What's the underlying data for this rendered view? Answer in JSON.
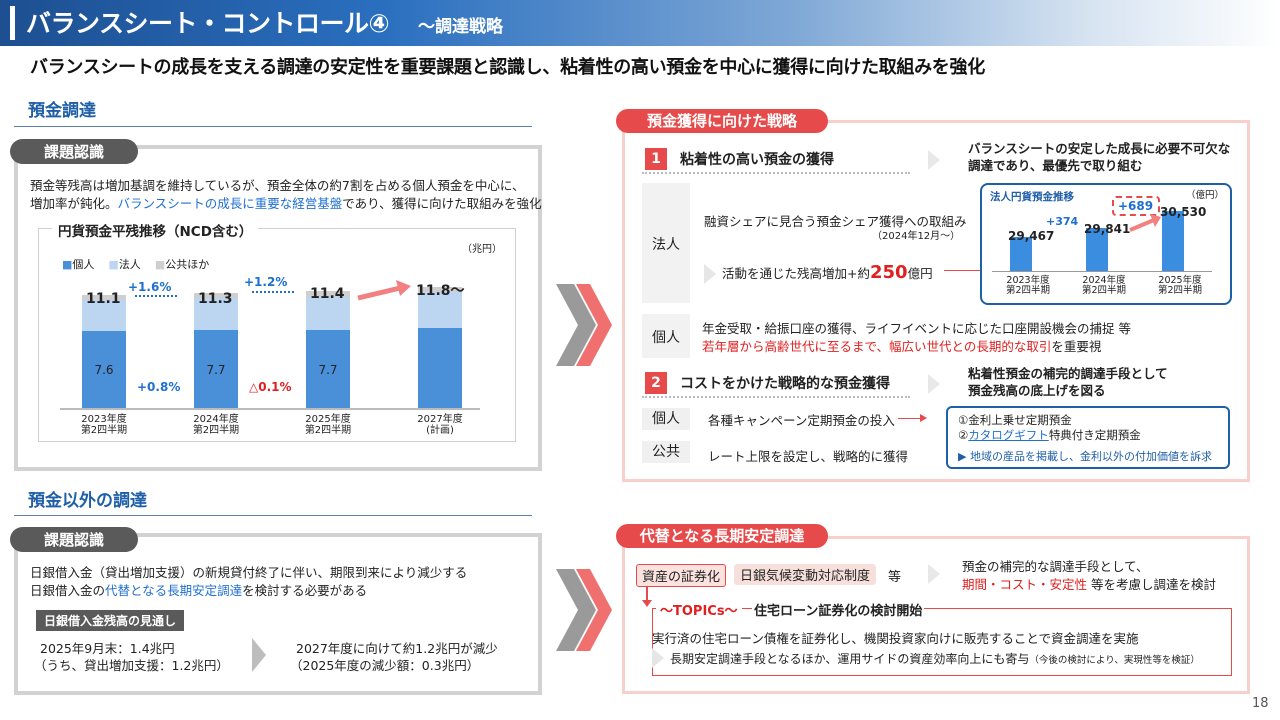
{
  "header": {
    "title": "バランスシート・コントロール④",
    "subtitle": "～調達戦略"
  },
  "lead": "バランスシートの成長を支える調達の安定性を重要課題と認識し、粘着性の高い預金を中心に獲得に向けた取組みを強化",
  "deposit": {
    "heading": "預金調達",
    "issue_tag": "課題認識",
    "text1": "預金等残高は増加基調を維持しているが、預金全体の約7割を占める個人預金を中心に、",
    "text2a": "増加率が鈍化。",
    "text2b": "バランスシートの成長に重要な経営基盤",
    "text2c": "であり、獲得に向けた取組みを強化"
  },
  "chart_data": {
    "type": "bar",
    "title": "円貨預金平残推移（NCD含む）",
    "unit": "（兆円）",
    "legend": [
      "個人",
      "法人",
      "公共ほか"
    ],
    "categories": [
      "2023年度\n第2四半期",
      "2024年度\n第2四半期",
      "2025年度\n第2四半期",
      "2027年度\n(計画)"
    ],
    "totals": [
      "11.1",
      "11.3",
      "11.4",
      "11.8～"
    ],
    "kojin_labels": [
      "7.6",
      "7.7",
      "7.7",
      ""
    ],
    "series": [
      {
        "name": "個人",
        "values": [
          7.6,
          7.7,
          7.7,
          7.9
        ]
      },
      {
        "name": "法人",
        "values": [
          3.0,
          3.1,
          3.2,
          3.4
        ]
      },
      {
        "name": "公共ほか",
        "values": [
          0.5,
          0.5,
          0.5,
          0.5
        ]
      }
    ],
    "growth_total": [
      "+1.6%",
      "+1.2%"
    ],
    "growth_kojin": [
      "+0.8%",
      "△0.1%"
    ],
    "colors": {
      "kojin": "#4a90d9",
      "hojin": "#bcd6f2",
      "kokyo": "#cfcfcf"
    }
  },
  "strategy": {
    "tag": "預金獲得に向けた戦略",
    "item1_num": "1",
    "item1_title": "粘着性の高い預金の獲得",
    "item1_note1": "バランスシートの安定した成長に必要不可欠な",
    "item1_note2": "調達であり、最優先で取り組む",
    "hojin_label": "法人",
    "hojin_text1": "融資シェアに見合う預金シェア獲得への取組み",
    "hojin_text2": "（2024年12月～）",
    "hojin_text3a": "活動を通じた残高増加+約",
    "hojin_text3b": "250",
    "hojin_text3c": "億円",
    "mini_chart": {
      "title": "法人円貨預金推移",
      "unit": "（億円）",
      "categories": [
        "2023年度\n第2四半期",
        "2024年度\n第2四半期",
        "2025年度\n第2四半期"
      ],
      "labels": [
        "29,467",
        "29,841",
        "30,530"
      ],
      "values": [
        29467,
        29841,
        30530
      ],
      "delta1": "+374",
      "delta2": "+689"
    },
    "kojin_label": "個人",
    "kojin_text1": "年金受取・給振口座の獲得、ライフイベントに応じた口座開設機会の捕捉 等",
    "kojin_text2a": "若年層から高齢世代に至るまで、幅広い世代との長期的な取引",
    "kojin_text2b": "を重要視",
    "item2_num": "2",
    "item2_title": "コストをかけた戦略的な預金獲得",
    "item2_note1": "粘着性預金の補完的調達手段として",
    "item2_note2": "預金残高の底上げを図る",
    "row1_label": "個人",
    "row1_text": "各種キャンペーン定期預金の投入",
    "row2_label": "公共",
    "row2_text": "レート上限を設定し、戦略的に獲得",
    "camp1": "①金利上乗せ定期預金",
    "camp2a": "②",
    "camp2b": "カタログギフト",
    "camp2c": "特典付き定期預金",
    "camp3": "地域の産品を掲載し、金利以外の付加価値を訴求"
  },
  "nondeposit": {
    "heading": "預金以外の調達",
    "issue_tag": "課題認識",
    "text1": "日銀借入金（貸出増加支援）の新規貸付終了に伴い、期限到来により減少する",
    "text2a": "日銀借入金の",
    "text2b": "代替となる長期安定調達",
    "text2c": "を検討する必要がある",
    "outlook_tag": "日銀借入金残高の見通し",
    "o1": "2025年9月末：1.4兆円",
    "o2": "（うち、貸出増加支援：1.2兆円）",
    "o3": "2027年度に向けて約1.2兆円が減少",
    "o4": "（2025年度の減少額：0.3兆円）"
  },
  "alt": {
    "tag": "代替となる長期安定調達",
    "b1": "資産の証券化",
    "b2": "日銀気候変動対応制度",
    "etc": "等",
    "r1": "預金の補完的な調達手段として、",
    "r2a": "期間・コスト・安定性",
    "r2b": " 等を考慮し調達を検討",
    "topics_tag": "～TOPICs～",
    "topics_title": "住宅ローン証券化の検討開始",
    "t1": "実行済の住宅ローン債権を証券化し、機関投資家向けに販売することで資金調達を実施",
    "t2": "長期安定調達手段となるほか、運用サイドの資産効率向上にも寄与",
    "t3": "（今後の検討により、実現性等を検証）"
  },
  "page_number": "18"
}
